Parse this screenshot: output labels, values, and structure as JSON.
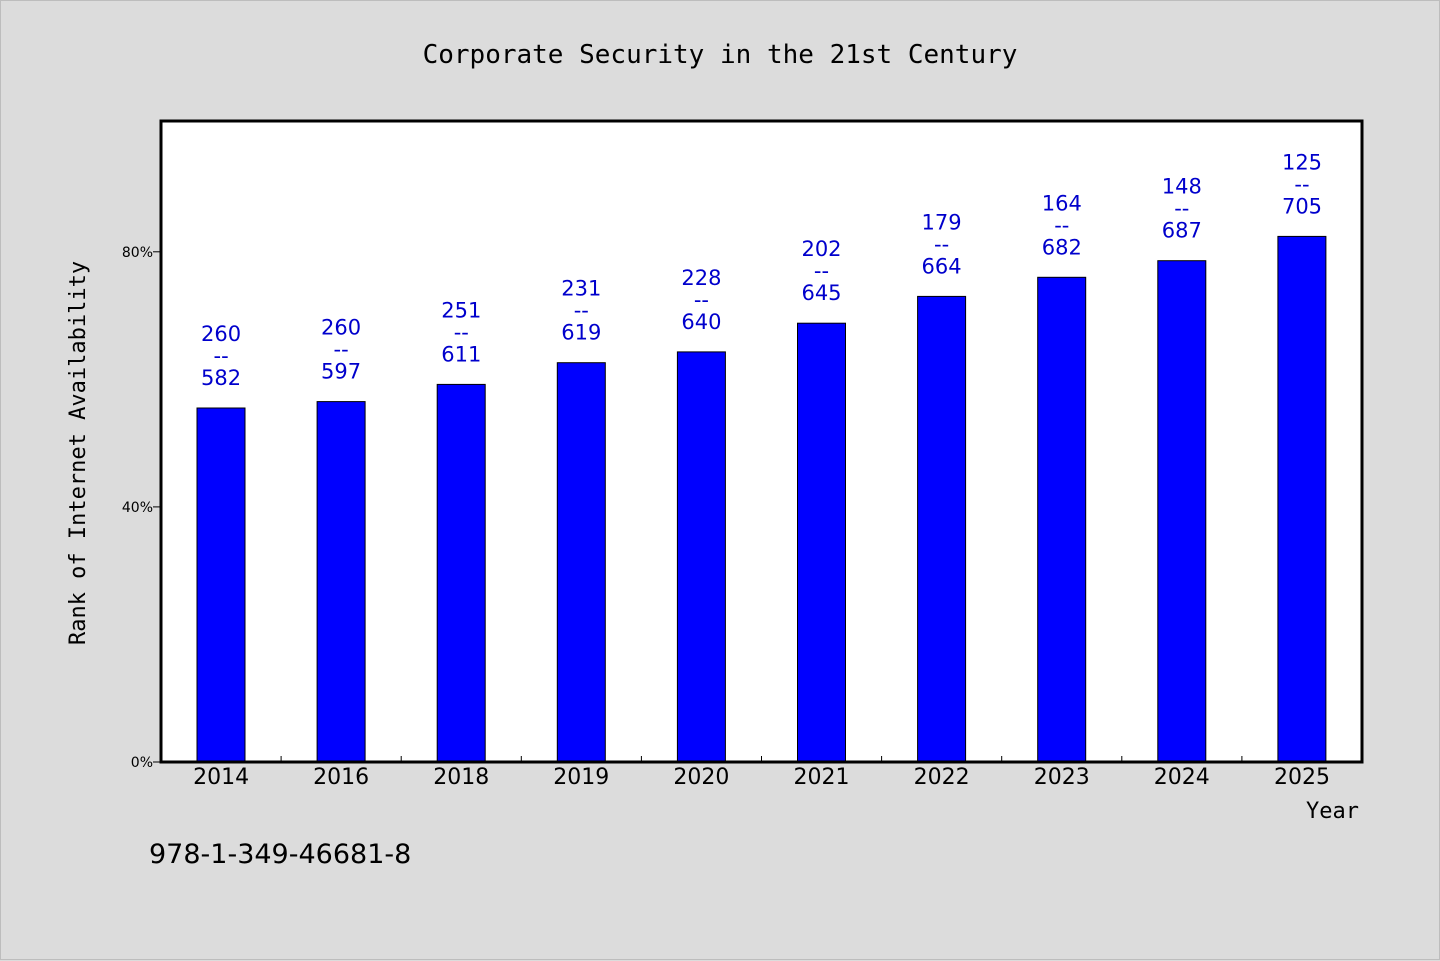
{
  "chart_data": {
    "type": "bar",
    "title": "Corporate Security in the 21st Century",
    "xlabel": "Year",
    "ylabel": "Rank of Internet Availability",
    "categories": [
      "2014",
      "2016",
      "2018",
      "2019",
      "2020",
      "2021",
      "2022",
      "2023",
      "2024",
      "2025"
    ],
    "values": [
      55.5,
      56.5,
      59.2,
      62.6,
      64.3,
      68.8,
      73.0,
      76.0,
      78.6,
      82.4
    ],
    "value_unit": "%",
    "data_labels": [
      {
        "top": "260",
        "sep": "--",
        "bottom": "582"
      },
      {
        "top": "260",
        "sep": "--",
        "bottom": "597"
      },
      {
        "top": "251",
        "sep": "--",
        "bottom": "611"
      },
      {
        "top": "231",
        "sep": "--",
        "bottom": "619"
      },
      {
        "top": "228",
        "sep": "--",
        "bottom": "640"
      },
      {
        "top": "202",
        "sep": "--",
        "bottom": "645"
      },
      {
        "top": "179",
        "sep": "--",
        "bottom": "664"
      },
      {
        "top": "164",
        "sep": "--",
        "bottom": "682"
      },
      {
        "top": "148",
        "sep": "--",
        "bottom": "687"
      },
      {
        "top": "125",
        "sep": "--",
        "bottom": "705"
      }
    ],
    "yticks": [
      {
        "value": 0,
        "label": "0%"
      },
      {
        "value": 40,
        "label": "40%"
      },
      {
        "value": 80,
        "label": "80%"
      }
    ],
    "ylim": [
      0,
      100.5
    ],
    "grid": false,
    "colors": {
      "bar": "#0000ff",
      "label": "#0000cc",
      "plot_bg": "#ffffff",
      "page_bg": "#dcdcdc"
    }
  },
  "footer": {
    "isbn": "978-1-349-46681-8"
  }
}
